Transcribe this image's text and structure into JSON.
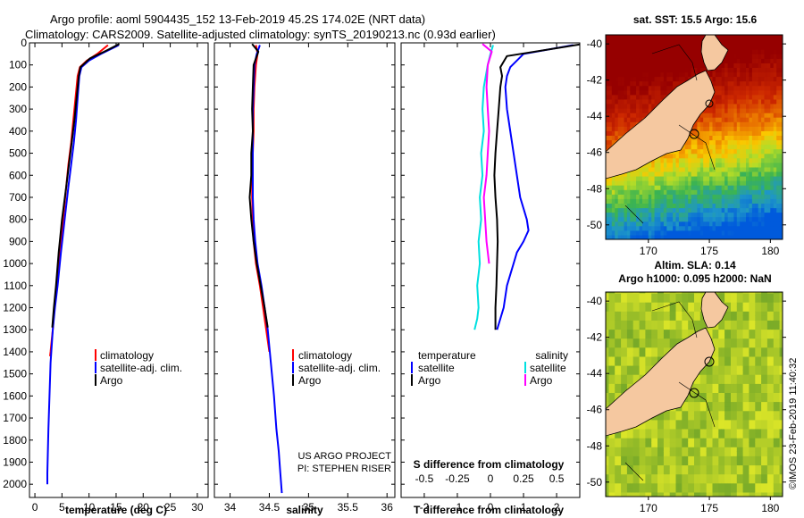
{
  "header": {
    "line1": "Argo profile: aoml 5904435_152 13-Feb-2019 45.2S 174.02E (NRT data)",
    "line2": "Climatology: CARS2009. Satellite-adjusted climatology: synTS_20190213.nc (0.93d earlier)"
  },
  "credit": {
    "project": "US ARGO PROJECT",
    "pi": "PI: STEPHEN RISER",
    "stamp": "©IMOS 23-Feb-2019 11:40:32"
  },
  "colors": {
    "climatology": "#ff0000",
    "satellite": "#0000ff",
    "argo": "#000000",
    "sal_satellite": "#00e0e0",
    "sal_argo": "#ff00ff",
    "land": "#f5c8a0"
  },
  "chart_data": [
    {
      "id": "temperature",
      "type": "line",
      "xlabel": "temperature (deg C)",
      "ylabel": "",
      "xlim": [
        -1,
        32
      ],
      "ylim": [
        2060,
        0
      ],
      "xticks": [
        0,
        5,
        10,
        15,
        20,
        25,
        30
      ],
      "yticks": [
        0,
        100,
        200,
        300,
        400,
        500,
        600,
        700,
        800,
        900,
        1000,
        1100,
        1200,
        1300,
        1400,
        1500,
        1600,
        1700,
        1800,
        1900,
        2000
      ],
      "legend": [
        "climatology",
        "satellite-adj. clim.",
        "Argo"
      ],
      "series": [
        {
          "name": "climatology",
          "color": "#ff0000",
          "x": [
            13.5,
            11.5,
            9.6,
            8.3,
            7.9,
            7.5,
            7.1,
            6.7,
            6.2,
            5.8,
            5.2,
            4.6,
            4.0,
            3.6,
            3.3,
            3.1,
            2.9,
            2.8
          ],
          "y": [
            10,
            50,
            80,
            110,
            150,
            250,
            350,
            450,
            550,
            650,
            800,
            950,
            1100,
            1200,
            1300,
            1350,
            1400,
            1420
          ]
        },
        {
          "name": "satellite-adj. clim.",
          "color": "#0000ff",
          "x": [
            15.5,
            12.2,
            10.0,
            8.6,
            8.2,
            7.9,
            7.6,
            7.2,
            6.7,
            6.2,
            5.5,
            4.8,
            4.2,
            3.7,
            3.3,
            2.9,
            2.7,
            2.5,
            2.4,
            2.3,
            2.3
          ],
          "y": [
            10,
            50,
            80,
            110,
            150,
            250,
            350,
            450,
            550,
            650,
            800,
            950,
            1100,
            1200,
            1300,
            1450,
            1600,
            1750,
            1850,
            1950,
            2000
          ]
        },
        {
          "name": "Argo",
          "color": "#000000",
          "x": [
            15.6,
            12.8,
            10.2,
            8.4,
            8.1,
            7.7,
            7.3,
            6.8,
            6.3,
            5.8,
            5.0,
            4.4,
            3.9,
            3.5,
            3.2
          ],
          "y": [
            5,
            40,
            70,
            110,
            150,
            250,
            350,
            450,
            550,
            650,
            800,
            950,
            1100,
            1200,
            1290
          ]
        }
      ]
    },
    {
      "id": "salinity",
      "type": "line",
      "xlabel": "salinity",
      "ylabel": "",
      "xlim": [
        33.8,
        36.1
      ],
      "ylim": [
        2060,
        0
      ],
      "xticks": [
        34,
        34.5,
        35,
        35.5,
        36
      ],
      "legend": [
        "climatology",
        "satellite-adj. clim.",
        "Argo"
      ],
      "series": [
        {
          "name": "climatology",
          "color": "#ff0000",
          "x": [
            34.33,
            34.35,
            34.33,
            34.31,
            34.3,
            34.3,
            34.29,
            34.28,
            34.28,
            34.29,
            34.3,
            34.33,
            34.38,
            34.42,
            34.46,
            34.5
          ],
          "y": [
            10,
            50,
            100,
            200,
            300,
            400,
            500,
            600,
            700,
            800,
            900,
            1000,
            1100,
            1200,
            1300,
            1400
          ]
        },
        {
          "name": "satellite-adj. clim.",
          "color": "#0000ff",
          "x": [
            34.38,
            34.34,
            34.31,
            34.3,
            34.29,
            34.29,
            34.29,
            34.29,
            34.29,
            34.3,
            34.32,
            34.35,
            34.4,
            34.44,
            34.48,
            34.52,
            34.56,
            34.59,
            34.62,
            34.64,
            34.66
          ],
          "y": [
            10,
            50,
            100,
            200,
            300,
            400,
            500,
            600,
            700,
            800,
            900,
            1000,
            1100,
            1200,
            1300,
            1450,
            1600,
            1750,
            1850,
            1950,
            2040
          ]
        },
        {
          "name": "Argo",
          "color": "#000000",
          "x": [
            34.28,
            34.36,
            34.3,
            34.29,
            34.28,
            34.29,
            34.27,
            34.27,
            34.25,
            34.27,
            34.3,
            34.34,
            34.39,
            34.44,
            34.48
          ],
          "y": [
            5,
            40,
            100,
            200,
            300,
            400,
            500,
            600,
            700,
            800,
            900,
            1000,
            1100,
            1200,
            1290
          ]
        }
      ]
    },
    {
      "id": "differences",
      "type": "line",
      "xlabel": "T difference from climatology",
      "xlabel_top": "S difference from climatology",
      "xlim": [
        -2.7,
        2.7
      ],
      "ylim": [
        2060,
        0
      ],
      "xticks": [
        -2,
        -1,
        0,
        1,
        2
      ],
      "xticks_s": [
        -0.5,
        -0.25,
        0,
        0.25,
        0.5
      ],
      "xticklabels_s": [
        "-0.5",
        "-0.25",
        "0",
        "0.25",
        "0.5"
      ],
      "legend_temperature_title": "temperature",
      "legend_salinity_title": "salinity",
      "legend_temperature": [
        "satellite",
        "Argo"
      ],
      "legend_salinity": [
        "satellite",
        "Argo"
      ],
      "series": [
        {
          "name": "T satellite",
          "color": "#0000ff",
          "x": [
            2.5,
            1.0,
            0.8,
            0.6,
            0.5,
            0.45,
            0.5,
            0.6,
            0.7,
            0.8,
            0.9,
            1.0,
            1.1,
            1.15,
            1.0,
            0.8,
            0.7,
            0.6,
            0.5,
            0.4,
            0.3,
            0.2
          ],
          "y": [
            10,
            50,
            80,
            110,
            150,
            200,
            300,
            400,
            500,
            600,
            700,
            750,
            800,
            850,
            900,
            950,
            1000,
            1050,
            1100,
            1200,
            1250,
            1300
          ]
        },
        {
          "name": "T Argo",
          "color": "#000000",
          "x": [
            2.8,
            0.5,
            0.3,
            0.35,
            0.3,
            0.25,
            0.2,
            0.15,
            0.12,
            0.15,
            0.2,
            0.22,
            0.2,
            0.18,
            0.15,
            0.15
          ],
          "y": [
            5,
            60,
            110,
            150,
            200,
            300,
            400,
            500,
            600,
            700,
            800,
            900,
            1000,
            1100,
            1200,
            1300
          ]
        },
        {
          "name": "S satellite",
          "color": "#00e0e0",
          "x": [
            0.02,
            0.0,
            -0.02,
            -0.05,
            -0.06,
            -0.05,
            -0.07,
            -0.06,
            -0.08,
            -0.07,
            -0.09,
            -0.08,
            -0.1,
            -0.09,
            -0.1,
            -0.12
          ],
          "y": [
            10,
            50,
            100,
            200,
            300,
            400,
            500,
            600,
            700,
            800,
            900,
            1000,
            1100,
            1200,
            1250,
            1300
          ]
        },
        {
          "name": "S Argo",
          "color": "#ff00ff",
          "x": [
            -0.06,
            0.01,
            -0.02,
            -0.03,
            -0.02,
            -0.01,
            -0.02,
            -0.03,
            -0.05,
            -0.04,
            -0.03,
            -0.01
          ],
          "y": [
            5,
            40,
            100,
            200,
            300,
            400,
            500,
            600,
            700,
            800,
            900,
            1000
          ]
        }
      ]
    },
    {
      "id": "sst-map",
      "type": "heatmap",
      "title": "sat. SST: 15.5 Argo: 15.6",
      "xlim": [
        166.5,
        181
      ],
      "ylim": [
        -50.8,
        -39.5
      ],
      "xticks": [
        170,
        175,
        180
      ],
      "yticks": [
        -40,
        -42,
        -44,
        -46,
        -48,
        -50
      ],
      "float_position": [
        174.02,
        -45.2
      ]
    },
    {
      "id": "sla-map",
      "type": "heatmap",
      "title": "Altim. SLA: 0.14",
      "subtitle": "Argo h1000: 0.095 h2000: NaN",
      "xlim": [
        166.5,
        181
      ],
      "ylim": [
        -50.8,
        -39.5
      ],
      "xticks": [
        170,
        175,
        180
      ],
      "yticks": [
        -40,
        -42,
        -44,
        -46,
        -48,
        -50
      ],
      "float_position": [
        174.02,
        -45.2
      ]
    }
  ]
}
